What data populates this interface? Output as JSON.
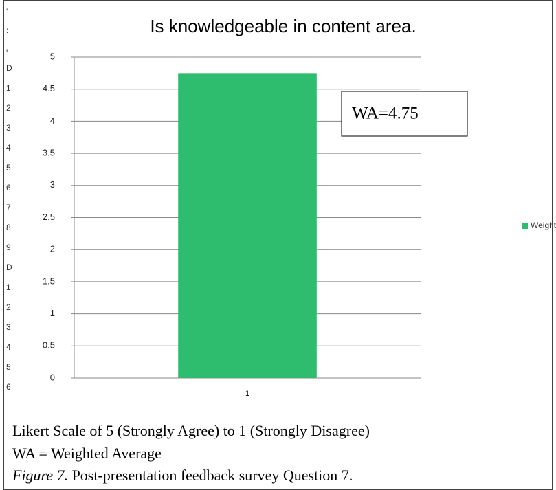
{
  "margin_numbers": [
    "'",
    ":",
    "'",
    "D",
    "1",
    "2",
    "3",
    "4",
    "5",
    "6",
    "7",
    "8",
    "9",
    "D",
    "1",
    "2",
    "3",
    "4",
    "5",
    "6"
  ],
  "chart_data": {
    "type": "bar",
    "title": "Is knowledgeable in content area.",
    "categories": [
      "1"
    ],
    "series": [
      {
        "name": "Weighted Average",
        "color": "#2ebd6e",
        "values": [
          4.75
        ]
      }
    ],
    "ylim": [
      0,
      5
    ],
    "yticks": [
      0,
      0.5,
      1,
      1.5,
      2,
      2.5,
      3,
      3.5,
      4,
      4.5,
      5
    ],
    "grid": true,
    "legend": "right",
    "annotation": "WA=4.75"
  },
  "caption": {
    "line1": "Likert Scale of 5 (Strongly Agree) to 1 (Strongly Disagree)",
    "line2": "WA = Weighted Average",
    "figure_label": "Figure 7.",
    "figure_text": " Post-presentation feedback survey Question 7."
  }
}
